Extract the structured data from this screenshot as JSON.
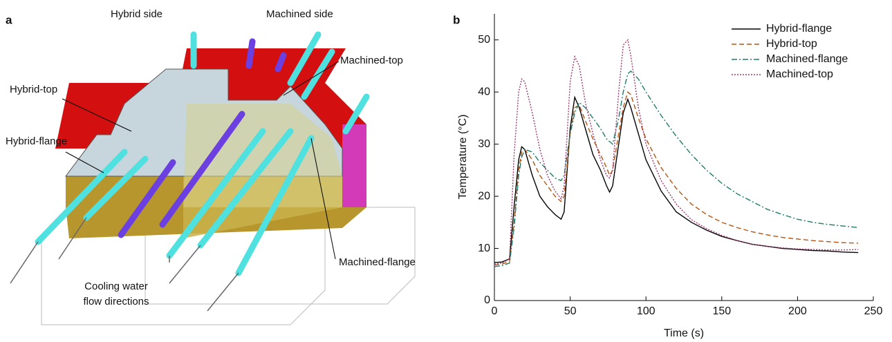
{
  "panel_a": {
    "panel_label": "a",
    "side_left": "Hybrid side",
    "side_right": "Machined side",
    "machined_top": "Machined-top",
    "hybrid_top": "Hybrid-top",
    "hybrid_flange": "Hybrid-flange",
    "machined_flange": "Machined-flange",
    "cooling_line1": "Cooling water",
    "cooling_line2": "flow directions"
  },
  "chart_data": {
    "type": "line",
    "panel_label": "b",
    "xlabel": "Time (s)",
    "ylabel": "Temperature (°C)",
    "x": [
      0,
      5,
      10,
      13,
      16,
      18,
      20,
      25,
      30,
      35,
      40,
      44,
      46,
      48,
      50,
      53,
      56,
      60,
      65,
      70,
      74,
      76,
      78,
      82,
      85,
      88,
      90,
      95,
      100,
      110,
      120,
      130,
      140,
      150,
      160,
      170,
      180,
      190,
      200,
      210,
      220,
      230,
      240
    ],
    "series": [
      {
        "name": "Hybrid-flange",
        "color": "#000000",
        "linestyle": "solid",
        "values": [
          7.3,
          7.4,
          8,
          18,
          27,
          29.5,
          29,
          24,
          20,
          18,
          16.5,
          15.6,
          17,
          25,
          33,
          39,
          37,
          33,
          28,
          25,
          22,
          20.8,
          22,
          30,
          36,
          38.6,
          37,
          32,
          27,
          21,
          17,
          15,
          13.5,
          12.3,
          11.5,
          10.8,
          10.4,
          10,
          9.8,
          9.6,
          9.5,
          9.3,
          9.2
        ]
      },
      {
        "name": "Hybrid-top",
        "color": "#b5530f",
        "linestyle": "dashed",
        "values": [
          6.8,
          7,
          7.5,
          15,
          25,
          28.5,
          29,
          27,
          24,
          22,
          20,
          19,
          20,
          26,
          32,
          37,
          37.5,
          34.5,
          31,
          28,
          25.5,
          24,
          25,
          32,
          37,
          40,
          39.5,
          35,
          31,
          25.5,
          21.5,
          18.5,
          16.5,
          15,
          14,
          13.2,
          12.6,
          12.1,
          11.8,
          11.5,
          11.3,
          11.1,
          11
        ]
      },
      {
        "name": "Machined-flange",
        "color": "#1f7a6a",
        "linestyle": "dashdot",
        "values": [
          6.5,
          6.7,
          7.2,
          14,
          24,
          27.5,
          29,
          28.5,
          26.5,
          25,
          23.5,
          23,
          24,
          28,
          32,
          36,
          38,
          37,
          35,
          33,
          31,
          30.5,
          30,
          35,
          40,
          43.5,
          44,
          42.5,
          40,
          35.5,
          31.5,
          28,
          25,
          22.5,
          20.5,
          19,
          17.5,
          16.5,
          15.6,
          15,
          14.6,
          14.3,
          14
        ]
      },
      {
        "name": "Machined-top",
        "color": "#a0346e",
        "linestyle": "dotted",
        "values": [
          7,
          7.2,
          8,
          28,
          40,
          42.5,
          42,
          36,
          29,
          24,
          21,
          19.5,
          22,
          32,
          42,
          46.8,
          45,
          38,
          32,
          27,
          24,
          23.5,
          25,
          40,
          49,
          50,
          47,
          37,
          30,
          23,
          18.5,
          15.5,
          13.8,
          12.5,
          11.5,
          10.8,
          10.4,
          10.1,
          9.9,
          9.8,
          9.7,
          9.7,
          9.8
        ]
      }
    ],
    "xlim": [
      0,
      250
    ],
    "xticks": [
      0,
      50,
      100,
      150,
      200,
      250
    ],
    "ylim": [
      0,
      55
    ],
    "yticks": [
      0,
      10,
      20,
      30,
      40,
      50
    ],
    "legend": "upper right"
  }
}
